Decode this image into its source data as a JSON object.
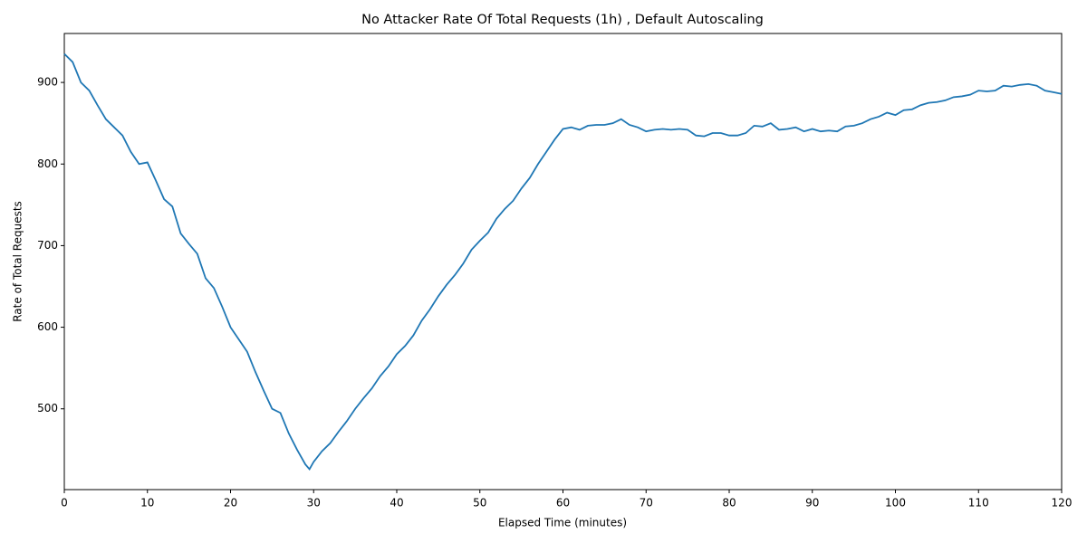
{
  "chart_data": {
    "type": "line",
    "title": "No Attacker Rate Of Total Requests (1h) , Default Autoscaling",
    "x_label": "Elapsed Time (minutes)",
    "y_label": "Rate of Total Requests",
    "color": "#1f77b4",
    "x": [
      0,
      1,
      2,
      3,
      4,
      5,
      6,
      7,
      8,
      9,
      10,
      11,
      12,
      13,
      14,
      15,
      16,
      17,
      18,
      19,
      20,
      21,
      22,
      23,
      24,
      25,
      26,
      27,
      28,
      29,
      29.5,
      30,
      31,
      32,
      33,
      34,
      35,
      36,
      37,
      38,
      39,
      40,
      41,
      42,
      43,
      44,
      45,
      46,
      47,
      48,
      49,
      50,
      51,
      52,
      53,
      54,
      55,
      56,
      57,
      58,
      59,
      60,
      61,
      62,
      63,
      64,
      65,
      66,
      67,
      68,
      69,
      70,
      71,
      72,
      73,
      74,
      75,
      76,
      77,
      78,
      79,
      80,
      81,
      82,
      83,
      84,
      85,
      86,
      87,
      88,
      89,
      90,
      91,
      92,
      93,
      94,
      95,
      96,
      97,
      98,
      99,
      100,
      101,
      102,
      103,
      104,
      105,
      106,
      107,
      108,
      109,
      110,
      111,
      112,
      113,
      114,
      115,
      116,
      117,
      118,
      119,
      120
    ],
    "values": [
      935,
      925,
      900,
      890,
      872,
      855,
      845,
      835,
      815,
      800,
      802,
      780,
      757,
      748,
      715,
      702,
      690,
      660,
      648,
      625,
      600,
      585,
      570,
      545,
      522,
      500,
      495,
      470,
      450,
      432,
      426,
      435,
      448,
      458,
      472,
      485,
      500,
      513,
      525,
      540,
      552,
      567,
      577,
      590,
      608,
      622,
      638,
      652,
      664,
      678,
      695,
      706,
      716,
      733,
      745,
      755,
      770,
      783,
      800,
      815,
      830,
      843,
      845,
      842,
      847,
      848,
      848,
      850,
      855,
      848,
      845,
      840,
      842,
      843,
      842,
      843,
      842,
      835,
      834,
      838,
      838,
      835,
      835,
      838,
      847,
      846,
      850,
      842,
      843,
      845,
      840,
      843,
      840,
      841,
      840,
      846,
      847,
      850,
      855,
      858,
      863,
      860,
      866,
      867,
      872,
      875,
      876,
      878,
      882,
      883,
      885,
      890,
      889,
      890,
      896,
      895,
      897,
      898,
      896,
      890,
      888,
      886
    ],
    "xlim": [
      0,
      120
    ],
    "xticks": [
      0,
      10,
      20,
      30,
      40,
      50,
      60,
      70,
      80,
      90,
      100,
      110,
      120
    ],
    "ylim": [
      401,
      960
    ],
    "yticks": [
      500,
      600,
      700,
      800,
      900
    ]
  }
}
